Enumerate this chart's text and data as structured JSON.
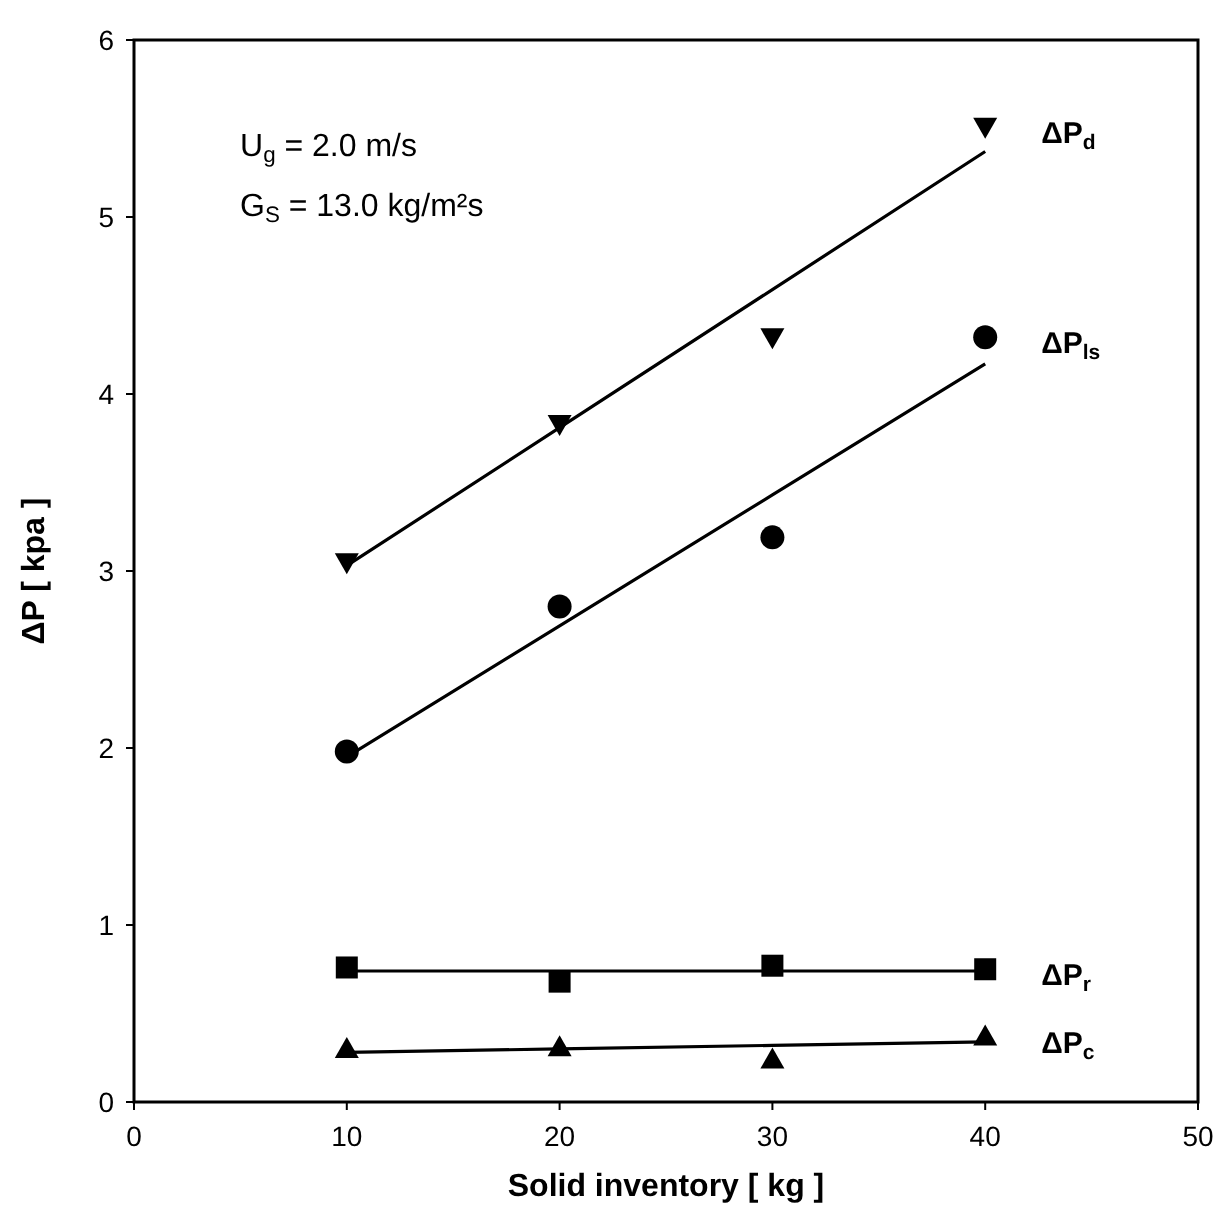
{
  "chart_data": {
    "type": "scatter",
    "xlabel": "Solid inventory [ kg ]",
    "ylabel": "ΔP [ kpa ]",
    "xlim": [
      0,
      50
    ],
    "ylim": [
      0,
      6
    ],
    "xticks": [
      0,
      10,
      20,
      30,
      40,
      50
    ],
    "yticks": [
      0,
      1,
      2,
      3,
      4,
      5,
      6
    ],
    "grid": false,
    "annotations": [
      "U$_{g}$ = 2.0 m/s",
      "G$_{S}$ = 13.0 kg/m²s"
    ],
    "x": [
      10,
      20,
      30,
      40
    ],
    "series": [
      {
        "name": "ΔP$_{d}$",
        "color": "#000000",
        "marker": "triangle-down",
        "values": [
          3.05,
          3.83,
          4.32,
          5.51
        ]
      },
      {
        "name": "ΔP$_{ls}$",
        "color": "#000000",
        "marker": "circle",
        "values": [
          1.98,
          2.8,
          3.19,
          4.32
        ]
      },
      {
        "name": "ΔP$_{r}$",
        "color": "#000000",
        "marker": "square",
        "values": [
          0.76,
          0.68,
          0.77,
          0.75
        ]
      },
      {
        "name": "ΔP$_{c}$",
        "color": "#000000",
        "marker": "triangle",
        "values": [
          0.3,
          0.31,
          0.24,
          0.37
        ]
      },
      {
        "type": "line",
        "color": "#000000",
        "marker": "none",
        "line_style": "solid",
        "values": [
          3.03,
          3.81,
          4.59,
          5.37
        ]
      },
      {
        "type": "line",
        "color": "#000000",
        "marker": "none",
        "line_style": "solid",
        "values": [
          1.95,
          2.69,
          3.43,
          4.17
        ]
      },
      {
        "type": "line",
        "color": "#000000",
        "marker": "none",
        "line_style": "solid",
        "values": [
          0.74,
          0.74,
          0.74,
          0.74
        ]
      },
      {
        "type": "line",
        "color": "#000000",
        "marker": "none",
        "line_style": "solid",
        "values": [
          0.28,
          0.3,
          0.32,
          0.34
        ]
      }
    ]
  }
}
